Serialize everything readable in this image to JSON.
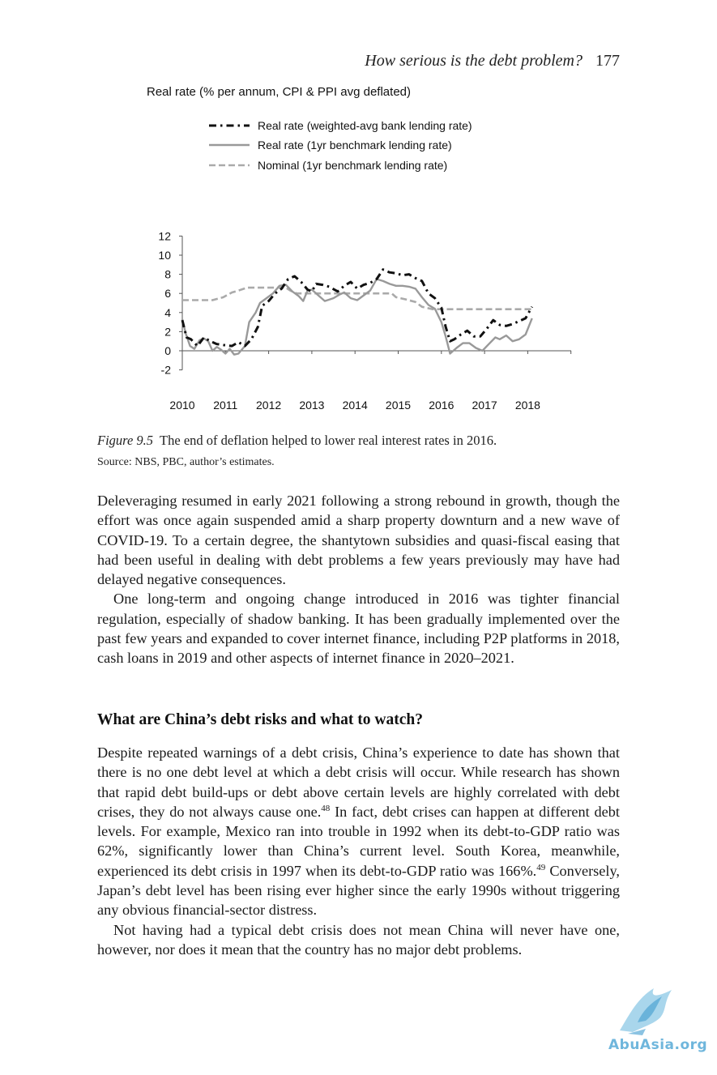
{
  "header": {
    "running_title": "How serious is the debt problem?",
    "page_number": "177"
  },
  "figure": {
    "ylabel": "Real rate (% per annum, CPI & PPI avg deflated)",
    "label": "Figure 9.5",
    "caption": "The end of deflation helped to lower real interest rates in 2016.",
    "source": "Source: NBS, PBC, author’s estimates."
  },
  "chart_data": {
    "type": "line",
    "ylim": [
      -2,
      12
    ],
    "yticks": [
      "12",
      "10",
      "8",
      "6",
      "4",
      "2",
      "0",
      "-2"
    ],
    "xticks": [
      "2010",
      "2011",
      "2012",
      "2013",
      "2014",
      "2015",
      "2016",
      "2017",
      "2018"
    ],
    "legend_position": "top-left",
    "series": [
      {
        "name": "Real rate (weighted-avg bank lending rate)",
        "style": "dash-dot",
        "color": "#111111",
        "points": [
          [
            2010.0,
            3.2
          ],
          [
            2010.1,
            1.4
          ],
          [
            2010.2,
            1.2
          ],
          [
            2010.35,
            0.5
          ],
          [
            2010.5,
            1.4
          ],
          [
            2010.65,
            1.0
          ],
          [
            2010.8,
            0.7
          ],
          [
            2010.95,
            0.6
          ],
          [
            2011.15,
            0.5
          ],
          [
            2011.3,
            0.9
          ],
          [
            2011.45,
            0.5
          ],
          [
            2011.6,
            1.2
          ],
          [
            2011.75,
            2.5
          ],
          [
            2011.85,
            4.7
          ],
          [
            2012.0,
            5.2
          ],
          [
            2012.15,
            6.0
          ],
          [
            2012.3,
            6.5
          ],
          [
            2012.45,
            7.5
          ],
          [
            2012.6,
            7.8
          ],
          [
            2012.75,
            7.2
          ],
          [
            2012.9,
            6.4
          ],
          [
            2013.0,
            6.2
          ],
          [
            2013.1,
            7.0
          ],
          [
            2013.25,
            6.9
          ],
          [
            2013.4,
            6.7
          ],
          [
            2013.6,
            6.2
          ],
          [
            2013.75,
            6.8
          ],
          [
            2013.9,
            7.2
          ],
          [
            2014.05,
            6.5
          ],
          [
            2014.2,
            6.9
          ],
          [
            2014.35,
            7.1
          ],
          [
            2014.5,
            7.5
          ],
          [
            2014.65,
            8.5
          ],
          [
            2014.8,
            8.2
          ],
          [
            2014.95,
            8.1
          ],
          [
            2015.1,
            7.9
          ],
          [
            2015.25,
            8.0
          ],
          [
            2015.4,
            7.6
          ],
          [
            2015.55,
            7.3
          ],
          [
            2015.7,
            6.0
          ],
          [
            2015.85,
            5.5
          ],
          [
            2016.0,
            4.5
          ],
          [
            2016.1,
            2.5
          ],
          [
            2016.2,
            1.0
          ],
          [
            2016.3,
            1.2
          ],
          [
            2016.45,
            1.7
          ],
          [
            2016.6,
            2.1
          ],
          [
            2016.75,
            1.5
          ],
          [
            2016.9,
            1.5
          ],
          [
            2017.05,
            2.3
          ],
          [
            2017.2,
            3.2
          ],
          [
            2017.35,
            2.7
          ],
          [
            2017.5,
            2.6
          ],
          [
            2017.65,
            2.8
          ],
          [
            2017.8,
            3.1
          ],
          [
            2017.95,
            3.4
          ],
          [
            2018.1,
            4.6
          ]
        ]
      },
      {
        "name": "Real rate (1yr benchmark lending rate)",
        "style": "solid",
        "color": "#999999",
        "points": [
          [
            2010.0,
            3.3
          ],
          [
            2010.08,
            1.8
          ],
          [
            2010.18,
            0.5
          ],
          [
            2010.28,
            0.2
          ],
          [
            2010.4,
            1.1
          ],
          [
            2010.5,
            1.3
          ],
          [
            2010.6,
            1.0
          ],
          [
            2010.7,
            0.0
          ],
          [
            2010.8,
            0.4
          ],
          [
            2010.9,
            0.1
          ],
          [
            2011.0,
            -0.3
          ],
          [
            2011.1,
            0.2
          ],
          [
            2011.2,
            -0.4
          ],
          [
            2011.3,
            -0.3
          ],
          [
            2011.45,
            0.5
          ],
          [
            2011.55,
            3.0
          ],
          [
            2011.7,
            4.0
          ],
          [
            2011.8,
            5.0
          ],
          [
            2011.95,
            5.5
          ],
          [
            2012.1,
            6.0
          ],
          [
            2012.25,
            6.8
          ],
          [
            2012.4,
            6.9
          ],
          [
            2012.55,
            6.2
          ],
          [
            2012.7,
            5.7
          ],
          [
            2012.8,
            5.2
          ],
          [
            2012.9,
            6.3
          ],
          [
            2013.0,
            6.4
          ],
          [
            2013.15,
            5.8
          ],
          [
            2013.3,
            5.2
          ],
          [
            2013.5,
            5.5
          ],
          [
            2013.65,
            5.9
          ],
          [
            2013.75,
            6.1
          ],
          [
            2013.9,
            5.5
          ],
          [
            2014.05,
            5.3
          ],
          [
            2014.2,
            5.8
          ],
          [
            2014.35,
            6.3
          ],
          [
            2014.5,
            7.5
          ],
          [
            2014.65,
            7.3
          ],
          [
            2014.8,
            7.0
          ],
          [
            2014.95,
            6.8
          ],
          [
            2015.1,
            6.8
          ],
          [
            2015.25,
            6.7
          ],
          [
            2015.4,
            6.5
          ],
          [
            2015.55,
            5.6
          ],
          [
            2015.7,
            4.8
          ],
          [
            2015.85,
            4.4
          ],
          [
            2016.0,
            3.0
          ],
          [
            2016.1,
            1.5
          ],
          [
            2016.2,
            -0.3
          ],
          [
            2016.35,
            0.3
          ],
          [
            2016.5,
            0.8
          ],
          [
            2016.65,
            0.8
          ],
          [
            2016.8,
            0.3
          ],
          [
            2016.95,
            0.0
          ],
          [
            2017.1,
            0.7
          ],
          [
            2017.25,
            1.4
          ],
          [
            2017.35,
            1.2
          ],
          [
            2017.5,
            1.6
          ],
          [
            2017.65,
            1.0
          ],
          [
            2017.8,
            1.2
          ],
          [
            2017.95,
            1.7
          ],
          [
            2018.1,
            3.4
          ]
        ]
      },
      {
        "name": "Nominal (1yr benchmark lending rate)",
        "style": "dashed",
        "color": "#aaaaaa",
        "points": [
          [
            2010.0,
            5.3
          ],
          [
            2010.7,
            5.3
          ],
          [
            2010.95,
            5.6
          ],
          [
            2011.15,
            6.1
          ],
          [
            2011.3,
            6.3
          ],
          [
            2011.5,
            6.6
          ],
          [
            2012.4,
            6.6
          ],
          [
            2012.5,
            6.3
          ],
          [
            2012.65,
            6.0
          ],
          [
            2014.85,
            6.0
          ],
          [
            2014.95,
            5.6
          ],
          [
            2015.2,
            5.35
          ],
          [
            2015.4,
            5.1
          ],
          [
            2015.55,
            4.6
          ],
          [
            2015.8,
            4.35
          ],
          [
            2018.15,
            4.35
          ]
        ]
      }
    ]
  },
  "body": {
    "p1": "Deleveraging resumed in early 2021 following a strong rebound in growth, though the effort was once again suspended amid a sharp property downturn and a new wave of COVID-19. To a certain degree, the shantytown subsidies and quasi-fiscal easing that had been useful in dealing with debt problems a few years previously may have had delayed negative consequences.",
    "p2": "One long-term and ongoing change introduced in 2016 was tighter financial regulation, especially of shadow banking. It has been gradually implemented over the past few years and expanded to cover internet finance, including P2P platforms in 2018, cash loans in 2019 and other aspects of internet finance in 2020–2021.",
    "heading": "What are China’s debt risks and what to watch?",
    "p3_before_48": "Despite repeated warnings of a debt crisis, China’s experience to date has shown that there is no one debt level at which a debt crisis will occur. While research has shown that rapid debt build-ups or debt above certain levels are highly correlated with debt crises, they do not always cause one.",
    "note_48": "48",
    "p3_between": " In fact, debt crises can happen at different debt levels. For example, Mexico ran into trouble in 1992 when its debt-to-GDP ratio was 62%, significantly lower than China’s current level. South Korea, meanwhile, experienced its debt crisis in 1997 when its debt-to-GDP ratio was 166%.",
    "note_49": "49",
    "p3_after_49": " Conversely, Japan’s debt level has been rising ever higher since the early 1990s without triggering any obvious financial-sector distress.",
    "p4": "Not having had a typical debt crisis does not mean China will never have one, however, nor does it mean that the country has no major debt problems."
  },
  "watermark": {
    "text": "AbuAsia.org",
    "color": "#6fb6dc"
  }
}
